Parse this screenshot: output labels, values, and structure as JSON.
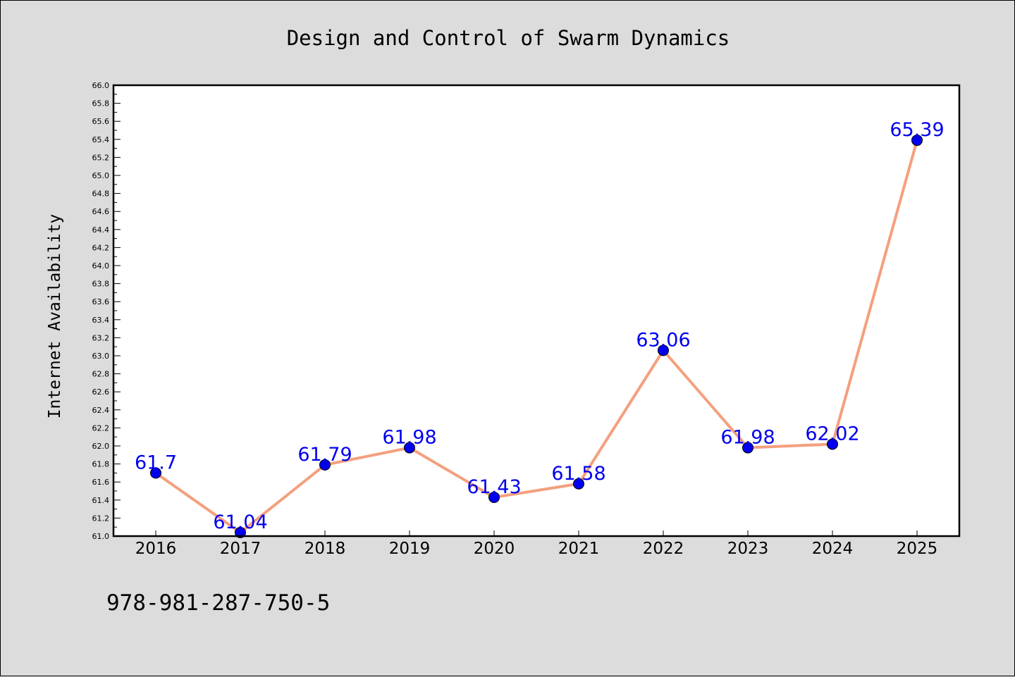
{
  "chart_data": {
    "type": "line",
    "title": "Design and Control of Swarm Dynamics",
    "xlabel": "",
    "ylabel": "Internet Availability",
    "categories": [
      "2016",
      "2017",
      "2018",
      "2019",
      "2020",
      "2021",
      "2022",
      "2023",
      "2024",
      "2025"
    ],
    "series": [
      {
        "values": [
          61.7,
          61.04,
          61.79,
          61.98,
          61.43,
          61.58,
          63.06,
          61.98,
          62.02,
          65.39
        ]
      }
    ],
    "data_labels": [
      "61.7",
      "61.04",
      "61.79",
      "61.98",
      "61.43",
      "61.58",
      "63.06",
      "61.98",
      "62.02",
      "65.39"
    ],
    "ylim": [
      61.0,
      66.0
    ],
    "yticks": [
      "61.0",
      "61.2",
      "61.4",
      "61.6",
      "61.8",
      "62.0",
      "62.2",
      "62.4",
      "62.6",
      "62.8",
      "63.0",
      "63.2",
      "63.4",
      "63.6",
      "63.8",
      "64.0",
      "64.2",
      "64.4",
      "64.6",
      "64.8",
      "65.0",
      "65.2",
      "65.4",
      "65.6",
      "65.8",
      "66.0"
    ],
    "grid": false,
    "legend": "none",
    "colors": {
      "line": "#f4a07e",
      "marker": "#0000ee",
      "label": "#0000ee",
      "plot_bg": "#ffffff",
      "page_bg": "#dcdcdc"
    }
  },
  "footer": {
    "isbn": "978-981-287-750-5"
  }
}
